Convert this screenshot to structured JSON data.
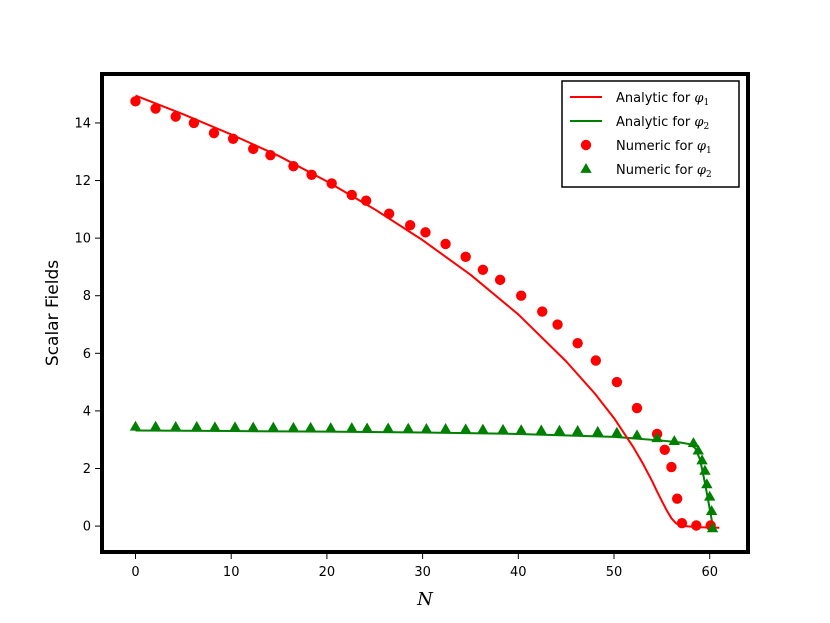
{
  "chart_data": {
    "type": "line",
    "title": "",
    "xlabel": "N",
    "ylabel": "Scalar Fields",
    "xlim": [
      -3.5,
      64
    ],
    "ylim": [
      -0.9,
      15.7
    ],
    "xticks": [
      0,
      10,
      20,
      30,
      40,
      50,
      60
    ],
    "yticks": [
      0,
      2,
      4,
      6,
      8,
      10,
      12,
      14
    ],
    "grid": false,
    "legend_position": "top-right",
    "series": [
      {
        "name": "Analytic for φ1",
        "legend_text": "Analytic for ",
        "legend_symbol": "φ",
        "legend_subscript": "1",
        "kind": "line",
        "color": "#ff0000",
        "x": [
          0,
          5,
          10,
          15,
          20,
          25,
          30,
          35,
          40,
          45,
          48,
          50,
          52,
          53,
          54,
          54.5,
          55,
          55.5,
          56,
          56.5,
          57,
          57.5,
          58,
          59,
          60,
          61
        ],
        "y": [
          14.95,
          14.3,
          13.6,
          12.85,
          11.97,
          11.0,
          9.93,
          8.73,
          7.35,
          5.72,
          4.6,
          3.75,
          2.75,
          2.18,
          1.55,
          1.2,
          0.87,
          0.55,
          0.27,
          0.09,
          0.02,
          0.0,
          -0.02,
          -0.04,
          -0.05,
          -0.06
        ]
      },
      {
        "name": "Analytic for φ2",
        "legend_text": "Analytic for ",
        "legend_symbol": "φ",
        "legend_subscript": "2",
        "kind": "line",
        "color": "#008000",
        "x": [
          0,
          10,
          20,
          30,
          40,
          50,
          55,
          57,
          58,
          58.5,
          59,
          59.5,
          60,
          60.3
        ],
        "y": [
          3.32,
          3.3,
          3.28,
          3.25,
          3.2,
          3.1,
          2.97,
          2.9,
          2.84,
          2.7,
          2.3,
          1.5,
          0.6,
          0.05
        ]
      },
      {
        "name": "Numeric for φ1",
        "legend_text": "Numeric for ",
        "legend_symbol": "φ",
        "legend_subscript": "1",
        "kind": "scatter",
        "marker": "circle",
        "color": "#ff0000",
        "x": [
          0,
          2.1,
          4.2,
          6.1,
          8.2,
          10.2,
          12.3,
          14.1,
          16.5,
          18.4,
          20.5,
          22.6,
          24.1,
          26.5,
          28.7,
          30.3,
          32.4,
          34.5,
          36.3,
          38.1,
          40.3,
          42.5,
          44.1,
          46.2,
          48.1,
          50.3,
          52.4,
          54.5,
          55.3,
          56.0,
          56.6,
          57.1,
          58.6,
          60.1
        ],
        "y": [
          14.75,
          14.5,
          14.22,
          14.0,
          13.65,
          13.45,
          13.1,
          12.88,
          12.5,
          12.2,
          11.9,
          11.5,
          11.3,
          10.85,
          10.45,
          10.2,
          9.8,
          9.35,
          8.9,
          8.55,
          8.0,
          7.45,
          7.0,
          6.35,
          5.75,
          5.0,
          4.1,
          3.2,
          2.65,
          2.05,
          0.95,
          0.1,
          0.02,
          0.02
        ]
      },
      {
        "name": "Numeric for φ2",
        "legend_text": "Numeric for ",
        "legend_symbol": "φ",
        "legend_subscript": "2",
        "kind": "scatter",
        "marker": "triangle",
        "color": "#008000",
        "x": [
          0,
          2.1,
          4.2,
          6.4,
          8.3,
          10.4,
          12.3,
          14.4,
          16.5,
          18.3,
          20.4,
          22.6,
          24.2,
          26.4,
          28.5,
          30.4,
          32.4,
          34.5,
          36.3,
          38.4,
          40.3,
          42.4,
          44.3,
          46.2,
          48.3,
          50.3,
          52.4,
          54.5,
          56.3,
          58.3,
          58.8,
          59.2,
          59.5,
          59.7,
          60.0,
          60.2,
          60.3
        ],
        "y": [
          3.45,
          3.45,
          3.44,
          3.44,
          3.43,
          3.43,
          3.42,
          3.42,
          3.41,
          3.41,
          3.4,
          3.4,
          3.39,
          3.39,
          3.38,
          3.37,
          3.37,
          3.36,
          3.35,
          3.34,
          3.33,
          3.32,
          3.31,
          3.3,
          3.27,
          3.24,
          3.15,
          3.05,
          2.95,
          2.88,
          2.62,
          2.28,
          1.92,
          1.45,
          1.02,
          0.52,
          -0.08
        ]
      }
    ]
  }
}
